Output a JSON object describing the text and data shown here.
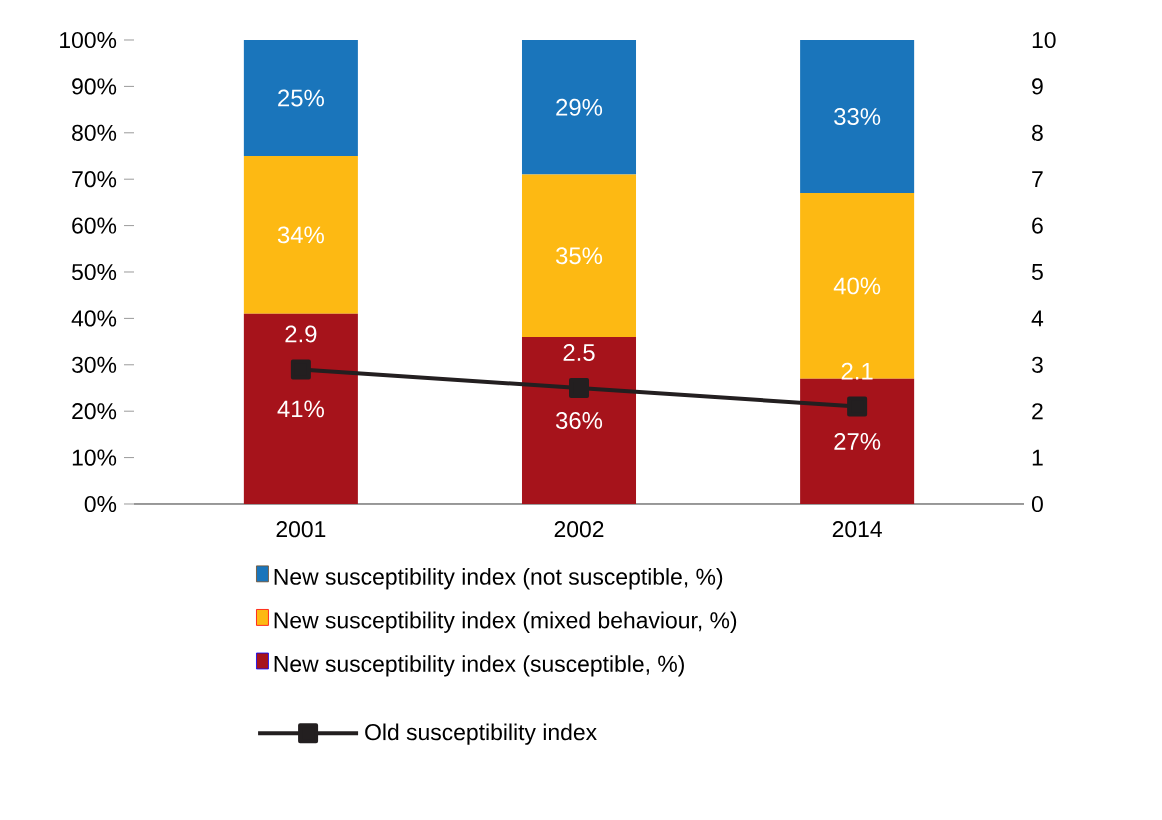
{
  "chart_data": {
    "type": "bar",
    "stacked": true,
    "categories": [
      "2001",
      "2002",
      "2014"
    ],
    "series": [
      {
        "name": "New susceptibility index (susceptible, %)",
        "color": "#a6131b",
        "values": [
          41,
          36,
          27
        ],
        "value_labels": [
          "41%",
          "36%",
          "27%"
        ]
      },
      {
        "name": "New susceptibility index (mixed behaviour, %)",
        "color": "#fdb913",
        "values": [
          34,
          35,
          40
        ],
        "value_labels": [
          "34%",
          "35%",
          "40%"
        ]
      },
      {
        "name": "New susceptibility index (not susceptible, %)",
        "color": "#1a75bb",
        "values": [
          25,
          29,
          33
        ],
        "value_labels": [
          "25%",
          "29%",
          "33%"
        ]
      },
      {
        "name": "Old susceptibility index",
        "type": "line",
        "axis": "y2",
        "color": "#231f20",
        "values": [
          2.9,
          2.5,
          2.1
        ],
        "value_labels": [
          "2.9",
          "2.5",
          "2.1"
        ],
        "marker": "square",
        "line_style": "solid"
      }
    ],
    "ylim": [
      0,
      100
    ],
    "yticks": [
      {
        "value": 0,
        "label": "0%"
      },
      {
        "value": 10,
        "label": "10%"
      },
      {
        "value": 20,
        "label": "20%"
      },
      {
        "value": 30,
        "label": "30%"
      },
      {
        "value": 40,
        "label": "40%"
      },
      {
        "value": 50,
        "label": "50%"
      },
      {
        "value": 60,
        "label": "60%"
      },
      {
        "value": 70,
        "label": "70%"
      },
      {
        "value": 80,
        "label": "80%"
      },
      {
        "value": 90,
        "label": "90%"
      },
      {
        "value": 100,
        "label": "100%"
      }
    ],
    "y2lim": [
      0,
      10
    ],
    "y2ticks": [
      0,
      1,
      2,
      3,
      4,
      5,
      6,
      7,
      8,
      9,
      10
    ],
    "legend": "bottom",
    "grid": false
  }
}
